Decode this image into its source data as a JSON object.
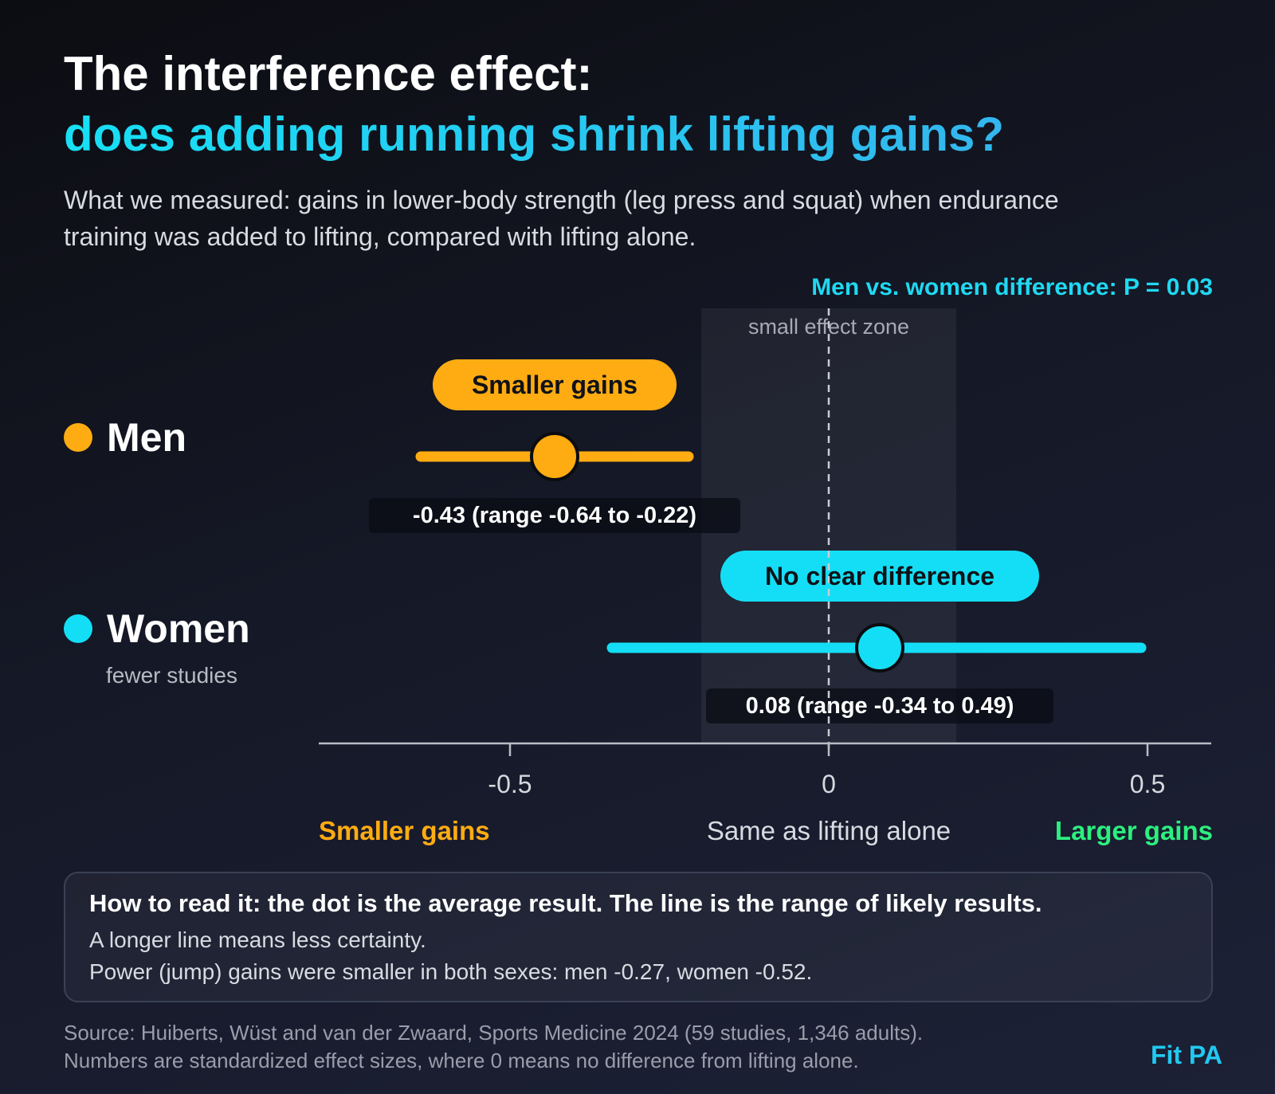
{
  "header": {
    "title_line1": "The interference effect:",
    "title_line2": "does adding running shrink lifting gains?",
    "subtitle": "What we measured: gains in lower-body strength (leg press and squat) when endurance training was added to lifting, compared with lifting alone."
  },
  "annotation": {
    "p_value": "Men vs. women difference: P = 0.03",
    "zone_label": "small effect zone"
  },
  "chart_data": {
    "type": "forest",
    "xlim": [
      -0.6,
      0.6
    ],
    "zone": [
      -0.2,
      0.2
    ],
    "ticks": [
      {
        "value": -0.5,
        "label": "-0.5"
      },
      {
        "value": 0,
        "label": "0"
      },
      {
        "value": 0.5,
        "label": "0.5"
      }
    ],
    "series": [
      {
        "name": "Men",
        "subtitle": "",
        "estimate": -0.43,
        "low": -0.64,
        "high": -0.22,
        "value_label": "-0.43 (range -0.64 to -0.22)",
        "verdict": "Smaller gains",
        "color": "#ffac12"
      },
      {
        "name": "Women",
        "subtitle": "fewer studies",
        "estimate": 0.08,
        "low": -0.34,
        "high": 0.49,
        "value_label": "0.08 (range -0.34 to 0.49)",
        "verdict": "No clear difference",
        "color": "#14def5"
      }
    ],
    "direction_labels": {
      "left": "Smaller gains",
      "center": "Same as lifting alone",
      "right": "Larger gains"
    }
  },
  "colors": {
    "men": "#ffac12",
    "women": "#14def5",
    "larger": "#2cf07f",
    "smaller": "#ffac12"
  },
  "note": {
    "heading": "How to read it: the dot is the average result. The line is the range of likely results.",
    "line1": "A longer line means less certainty.",
    "line2": "Power (jump) gains were smaller in both sexes: men -0.27, women -0.52."
  },
  "footer": {
    "source_line1": "Source: Huiberts, Wüst and van der Zwaard, Sports Medicine 2024 (59 studies, 1,346 adults).",
    "source_line2": "Numbers are standardized effect sizes, where 0 means no difference from lifting alone.",
    "brand": "Fit PA"
  }
}
